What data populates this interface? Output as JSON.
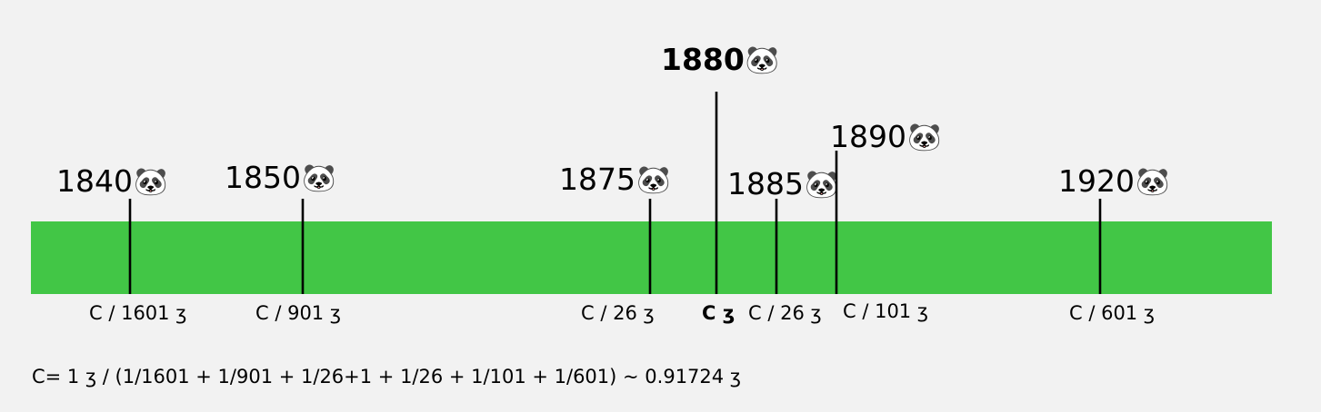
{
  "timeline": {
    "bar_color": "#42c646",
    "icon": "panda-face-icon",
    "markers": [
      {
        "year": "1840",
        "label": "C / 1601 ʒ",
        "highlight": false
      },
      {
        "year": "1850",
        "label": "C / 901 ʒ",
        "highlight": false
      },
      {
        "year": "1875",
        "label": "C / 26 ʒ",
        "highlight": false
      },
      {
        "year": "1880",
        "label": "C ʒ",
        "highlight": true
      },
      {
        "year": "1885",
        "label": "C / 26 ʒ",
        "highlight": false
      },
      {
        "year": "1890",
        "label": "C / 101 ʒ",
        "highlight": false
      },
      {
        "year": "1920",
        "label": "C / 601 ʒ",
        "highlight": false
      }
    ]
  },
  "formula": "C= 1 ʒ / (1/1601 + 1/901 + 1/26+1 + 1/26 + 1/101 + 1/601) ~ 0.91724 ʒ"
}
